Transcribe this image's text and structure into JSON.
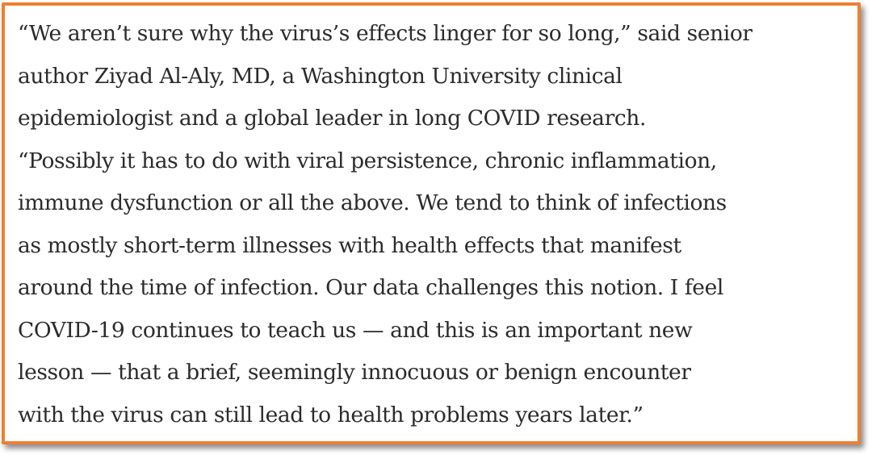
{
  "quote": {
    "lines": [
      "“We aren’t sure why the virus’s effects linger for so long,” said senior",
      "author Ziyad Al-Aly, MD, a Washington University clinical",
      "epidemiologist and a global leader in long COVID research.",
      "“Possibly it has to do with viral persistence, chronic inflammation,",
      "immune dysfunction or all the above. We tend to think of infections",
      "as mostly short-term illnesses with health effects that manifest",
      "around the time of infection. Our data challenges this notion. I feel",
      "COVID-19 continues to teach us — and this is an important new",
      "lesson — that a brief, seemingly innocuous or benign encounter",
      "with the virus can still lead to health problems years later.”"
    ]
  },
  "colors": {
    "border": "#ee7f33",
    "text": "#2b2b2b",
    "background": "#ffffff"
  }
}
